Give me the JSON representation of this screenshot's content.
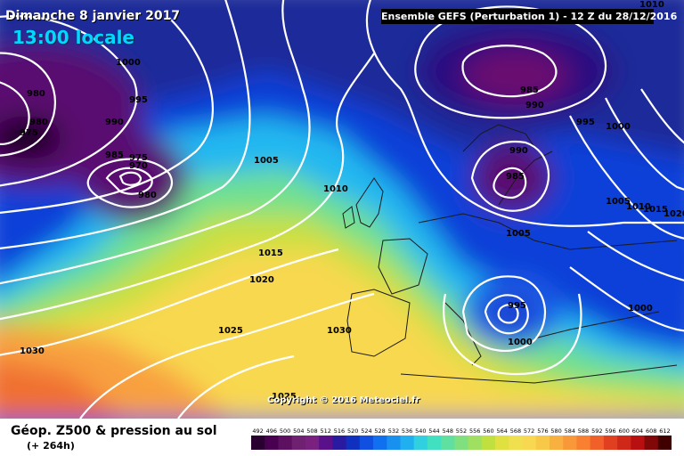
{
  "map": {
    "date_title": "Dimanche 8 janvier 2017",
    "local_time": "13:00 locale",
    "run_info": "Ensemble GEFS  (Perturbation 1)  -  12 Z du 28/12/2016",
    "copyright": "Copyright © 2016 Meteociel.fr",
    "isobar_labels": [
      "1010",
      "1000",
      "980",
      "975",
      "980",
      "995",
      "990",
      "985",
      "975",
      "970",
      "980",
      "1005",
      "1010",
      "1015",
      "1020",
      "1025",
      "1030",
      "1030",
      "985",
      "990",
      "995",
      "1000",
      "990",
      "985",
      "1005",
      "1005",
      "1010",
      "1015",
      "1020",
      "1000",
      "995",
      "1000",
      "1025"
    ]
  },
  "footer": {
    "product": "Géop. Z500 & pression au sol",
    "horizon": "(+ 264h)"
  },
  "legend": {
    "values": [
      "492",
      "496",
      "500",
      "504",
      "508",
      "512",
      "516",
      "520",
      "524",
      "528",
      "532",
      "536",
      "540",
      "544",
      "548",
      "552",
      "556",
      "560",
      "564",
      "568",
      "572",
      "576",
      "580",
      "584",
      "588",
      "592",
      "596",
      "600",
      "604",
      "608",
      "612"
    ],
    "colors": [
      "#2a0030",
      "#4a0050",
      "#5e1060",
      "#702070",
      "#7a207e",
      "#5a1088",
      "#2a1aa0",
      "#1030c0",
      "#1050e0",
      "#1070f0",
      "#1890f0",
      "#20b0f0",
      "#30d0e0",
      "#40e0c0",
      "#60e0a0",
      "#80e080",
      "#a0e060",
      "#c0e040",
      "#e0e040",
      "#f0e050",
      "#f8d850",
      "#f8c848",
      "#f8b040",
      "#f89838",
      "#f88030",
      "#f06028",
      "#e04020",
      "#d02818",
      "#b81010",
      "#800808",
      "#400000"
    ]
  }
}
